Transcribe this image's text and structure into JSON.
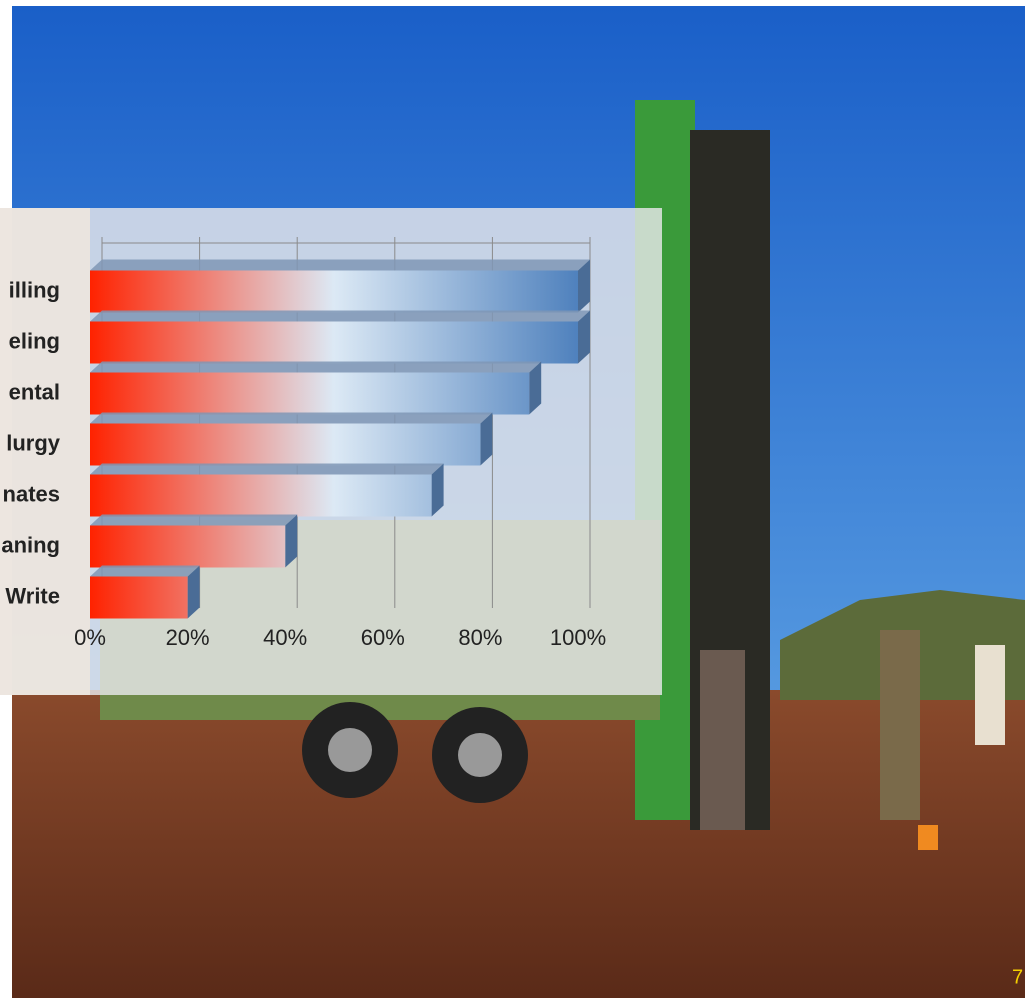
{
  "chart_data": {
    "type": "bar",
    "orientation": "horizontal",
    "categories": [
      "illing",
      "eling",
      "ental",
      "lurgy",
      "nates",
      "aning",
      "Write"
    ],
    "values": [
      100,
      100,
      90,
      80,
      70,
      40,
      20
    ],
    "xlim": [
      0,
      100
    ],
    "xticks": [
      {
        "value": 0,
        "label": "0%"
      },
      {
        "value": 20,
        "label": "20%"
      },
      {
        "value": 40,
        "label": "40%"
      },
      {
        "value": 60,
        "label": "60%"
      },
      {
        "value": 80,
        "label": "80%"
      },
      {
        "value": 100,
        "label": "100%"
      }
    ],
    "grid": true,
    "colors": [
      "#ff2200",
      "#dce9f5",
      "#4f81bd"
    ]
  },
  "slide_number": "7"
}
